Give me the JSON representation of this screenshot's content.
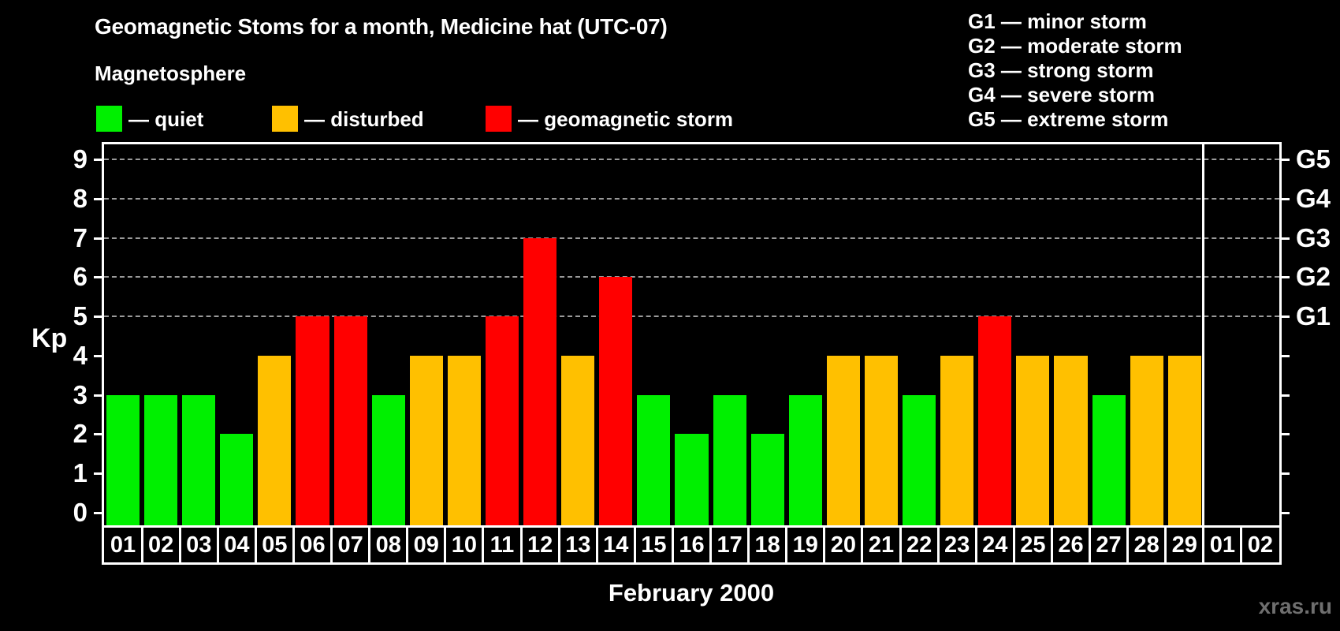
{
  "title": "Geomagnetic Stoms for a month, Medicine hat (UTC-07)",
  "watermark": "xras.ru",
  "legend": {
    "heading": "Magnetosphere",
    "items": [
      {
        "name": "quiet",
        "label": "— quiet",
        "color": "#00f000"
      },
      {
        "name": "disturbed",
        "label": "— disturbed",
        "color": "#ffc000"
      },
      {
        "name": "storm",
        "label": "— geomagnetic storm",
        "color": "#ff0000"
      }
    ]
  },
  "storm_scale_legend": [
    "G1 — minor storm",
    "G2 — moderate storm",
    "G3 — strong storm",
    "G4 — severe storm",
    "G5 — extreme storm"
  ],
  "chart_data": {
    "type": "bar",
    "title": "Geomagnetic Stoms for a month, Medicine hat (UTC-07)",
    "xlabel": "February 2000",
    "ylabel": "Kp",
    "ylim": [
      0,
      9
    ],
    "yticks": [
      0,
      1,
      2,
      3,
      4,
      5,
      6,
      7,
      8,
      9
    ],
    "gridline_kps": [
      5,
      6,
      7,
      8,
      9
    ],
    "grid": "dashed horizontal at Kp 5-9",
    "legend_position": "top",
    "right_scale": [
      {
        "kp": 5,
        "label": "G1"
      },
      {
        "kp": 6,
        "label": "G2"
      },
      {
        "kp": 7,
        "label": "G3"
      },
      {
        "kp": 8,
        "label": "G4"
      },
      {
        "kp": 9,
        "label": "G5"
      }
    ],
    "february_day_count": 29,
    "days": [
      {
        "label": "01",
        "month": "feb",
        "kp": 3,
        "level": "quiet"
      },
      {
        "label": "02",
        "month": "feb",
        "kp": 3,
        "level": "quiet"
      },
      {
        "label": "03",
        "month": "feb",
        "kp": 3,
        "level": "quiet"
      },
      {
        "label": "04",
        "month": "feb",
        "kp": 2,
        "level": "quiet"
      },
      {
        "label": "05",
        "month": "feb",
        "kp": 4,
        "level": "disturbed"
      },
      {
        "label": "06",
        "month": "feb",
        "kp": 5,
        "level": "storm"
      },
      {
        "label": "07",
        "month": "feb",
        "kp": 5,
        "level": "storm"
      },
      {
        "label": "08",
        "month": "feb",
        "kp": 3,
        "level": "quiet"
      },
      {
        "label": "09",
        "month": "feb",
        "kp": 4,
        "level": "disturbed"
      },
      {
        "label": "10",
        "month": "feb",
        "kp": 4,
        "level": "disturbed"
      },
      {
        "label": "11",
        "month": "feb",
        "kp": 5,
        "level": "storm"
      },
      {
        "label": "12",
        "month": "feb",
        "kp": 7,
        "level": "storm"
      },
      {
        "label": "13",
        "month": "feb",
        "kp": 4,
        "level": "disturbed"
      },
      {
        "label": "14",
        "month": "feb",
        "kp": 6,
        "level": "storm"
      },
      {
        "label": "15",
        "month": "feb",
        "kp": 3,
        "level": "quiet"
      },
      {
        "label": "16",
        "month": "feb",
        "kp": 2,
        "level": "quiet"
      },
      {
        "label": "17",
        "month": "feb",
        "kp": 3,
        "level": "quiet"
      },
      {
        "label": "18",
        "month": "feb",
        "kp": 2,
        "level": "quiet"
      },
      {
        "label": "19",
        "month": "feb",
        "kp": 3,
        "level": "quiet"
      },
      {
        "label": "20",
        "month": "feb",
        "kp": 4,
        "level": "disturbed"
      },
      {
        "label": "21",
        "month": "feb",
        "kp": 4,
        "level": "disturbed"
      },
      {
        "label": "22",
        "month": "feb",
        "kp": 3,
        "level": "quiet"
      },
      {
        "label": "23",
        "month": "feb",
        "kp": 4,
        "level": "disturbed"
      },
      {
        "label": "24",
        "month": "feb",
        "kp": 5,
        "level": "storm"
      },
      {
        "label": "25",
        "month": "feb",
        "kp": 4,
        "level": "disturbed"
      },
      {
        "label": "26",
        "month": "feb",
        "kp": 4,
        "level": "disturbed"
      },
      {
        "label": "27",
        "month": "feb",
        "kp": 3,
        "level": "quiet"
      },
      {
        "label": "28",
        "month": "feb",
        "kp": 4,
        "level": "disturbed"
      },
      {
        "label": "29",
        "month": "feb",
        "kp": 4,
        "level": "disturbed"
      },
      {
        "label": "01",
        "month": "mar",
        "kp": null,
        "level": null
      },
      {
        "label": "02",
        "month": "mar",
        "kp": null,
        "level": null
      }
    ]
  }
}
